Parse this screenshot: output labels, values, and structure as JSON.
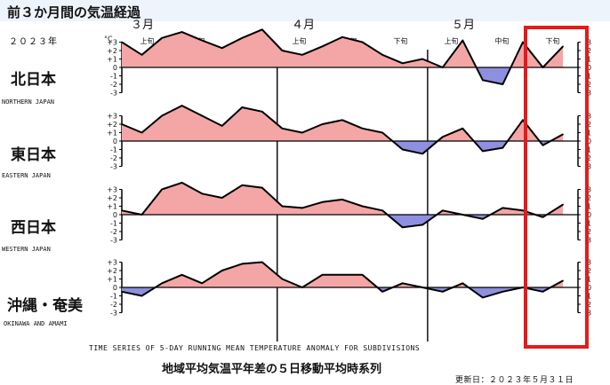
{
  "page": {
    "title": "前３か月間の気温経過",
    "year": "２０２３年",
    "footer_en": "TIME SERIES OF 5-DAY RUNNING MEAN TEMPERATURE ANOMALY FOR SUBDIVISIONS",
    "footer_ja": "地域平均気温平年差の５日移動平均時系列",
    "updated": "更新日：２０２３年５月３１日"
  },
  "colors": {
    "positive": "#f4a6a6",
    "negative": "#8f8fe0",
    "line": "#000000",
    "highlight": "#e41b1b",
    "title_bg": "#eef4fb"
  },
  "chart_data": {
    "type": "area",
    "months": [
      {
        "label": "３月"
      },
      {
        "label": "４月"
      },
      {
        "label": "５月"
      }
    ],
    "periods": [
      "上旬",
      "中旬",
      "下旬",
      "上旬",
      "中旬",
      "下旬",
      "上旬",
      "中旬",
      "下旬"
    ],
    "unit": "°C",
    "y_ticks": [
      "+3",
      "+2",
      "+1",
      "0",
      "-1",
      "-2",
      "-3"
    ],
    "right_ticks": [
      "3",
      "2",
      "1",
      "0",
      "1",
      "2",
      "3"
    ],
    "ylim": [
      -3,
      3
    ],
    "x": [
      1,
      5,
      9,
      13,
      17,
      21,
      25,
      29,
      33,
      37,
      41,
      45,
      49,
      53,
      57,
      61,
      65,
      69,
      73,
      77,
      81,
      85,
      89
    ],
    "x_label": "day of period (Mar 1 = 1)",
    "highlight": {
      "from_day": 82,
      "to_day": 92
    },
    "series": [
      {
        "name_ja": "北日本",
        "name_en": "NORTHERN JAPAN",
        "values": [
          3.0,
          1.5,
          3.5,
          4.2,
          3.2,
          2.3,
          3.5,
          4.5,
          2.0,
          1.5,
          2.5,
          3.6,
          3.0,
          1.5,
          0.5,
          1.0,
          0,
          3.2,
          -1.5,
          -2.0,
          3.0,
          0.0,
          2.5
        ]
      },
      {
        "name_ja": "東日本",
        "name_en": "EASTERN JAPAN",
        "values": [
          2.0,
          1.0,
          3.0,
          4.2,
          3.0,
          1.8,
          4.0,
          3.5,
          1.5,
          1.0,
          2.0,
          2.5,
          1.5,
          1.0,
          -1.0,
          -1.5,
          0.5,
          1.5,
          -1.2,
          -0.8,
          2.5,
          -0.5,
          0.8
        ]
      },
      {
        "name_ja": "西日本",
        "name_en": "WESTERN JAPAN",
        "values": [
          0.5,
          0.0,
          3.0,
          3.8,
          2.5,
          2.0,
          3.5,
          3.2,
          1.0,
          0.8,
          1.5,
          1.8,
          1.0,
          0.5,
          -1.5,
          -1.2,
          0.5,
          0.0,
          -0.5,
          0.8,
          0.5,
          -0.3,
          1.2
        ]
      },
      {
        "name_ja": "沖縄・奄美",
        "name_en": "OKINAWA AND AMAMI",
        "values": [
          -0.5,
          -1.0,
          0.5,
          1.5,
          0.5,
          2.0,
          2.8,
          3.0,
          1.0,
          0.0,
          1.5,
          1.5,
          1.5,
          -0.5,
          0.5,
          0.0,
          -0.5,
          0.5,
          -1.2,
          -0.5,
          0.0,
          -0.5,
          0.8
        ]
      }
    ]
  }
}
